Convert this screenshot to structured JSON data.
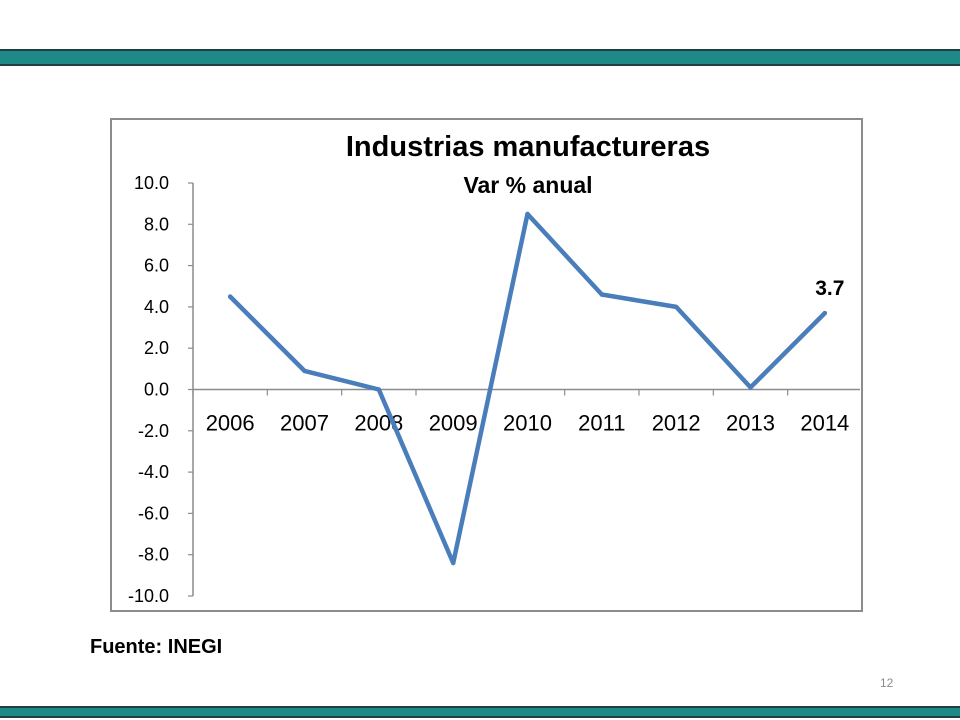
{
  "slide": {
    "source_text": "Fuente: INEGI",
    "page_number": "12"
  },
  "colors": {
    "band": "#1d8a88",
    "band_border": "#1f3f44",
    "line": "#4a7ebb",
    "frame": "#8c8c8c"
  },
  "chart_data": {
    "type": "line",
    "title": "Industrias manufactureras",
    "subtitle": "Var % anual",
    "categories": [
      "2006",
      "2007",
      "2008",
      "2009",
      "2010",
      "2011",
      "2012",
      "2013",
      "2014"
    ],
    "series": [
      {
        "values": [
          4.5,
          0.9,
          0.0,
          -8.4,
          8.5,
          4.6,
          4.0,
          0.1,
          3.7
        ]
      }
    ],
    "ylim": [
      -10,
      10
    ],
    "yticks": [
      "10.0",
      "8.0",
      "6.0",
      "4.0",
      "2.0",
      "0.0",
      "-2.0",
      "-4.0",
      "-6.0",
      "-8.0",
      "-10.0"
    ],
    "data_label": "3.7",
    "grid": false,
    "legend": "none"
  }
}
